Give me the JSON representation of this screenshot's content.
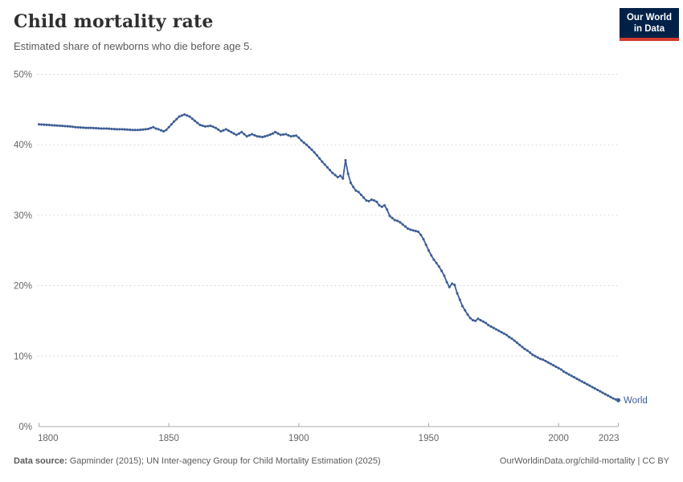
{
  "header": {
    "title": "Child mortality rate",
    "subtitle": "Estimated share of newborns who die before age 5.",
    "logo": {
      "line1": "Our World",
      "line2": "in Data"
    }
  },
  "footer": {
    "source_label": "Data source:",
    "source_text": " Gapminder (2015); UN Inter-agency Group for Child Mortality Estimation (2025)",
    "link_text": "OurWorldinData.org/child-mortality | CC BY"
  },
  "colors": {
    "series_blue": "#3f5f96",
    "logo_navy": "#002147",
    "logo_red": "#d1392f",
    "gridline": "#dadada",
    "axis": "#a8a8a8",
    "tick_label": "#666666"
  },
  "chart_data": {
    "type": "line",
    "title": "Child mortality rate",
    "subtitle": "Estimated share of newborns who die before age 5.",
    "xlabel": "",
    "ylabel": "",
    "xlim": [
      1800,
      2023
    ],
    "ylim": [
      0,
      50
    ],
    "grid": true,
    "legend_position": "end-of-line",
    "end_label": "World",
    "x_ticks": [
      {
        "value": 1800,
        "label": "1800"
      },
      {
        "value": 1850,
        "label": "1850"
      },
      {
        "value": 1900,
        "label": "1900"
      },
      {
        "value": 1950,
        "label": "1950"
      },
      {
        "value": 2000,
        "label": "2000"
      },
      {
        "value": 2023,
        "label": "2023"
      }
    ],
    "y_ticks": [
      {
        "value": 0,
        "label": "0%"
      },
      {
        "value": 10,
        "label": "10%"
      },
      {
        "value": 20,
        "label": "20%"
      },
      {
        "value": 30,
        "label": "30%"
      },
      {
        "value": 40,
        "label": "40%"
      },
      {
        "value": 50,
        "label": "50%"
      }
    ],
    "series": [
      {
        "name": "World",
        "color": "#3f5f96",
        "points": [
          [
            1800,
            42.9
          ],
          [
            1802,
            42.85
          ],
          [
            1804,
            42.8
          ],
          [
            1806,
            42.75
          ],
          [
            1808,
            42.7
          ],
          [
            1810,
            42.65
          ],
          [
            1812,
            42.6
          ],
          [
            1814,
            42.5
          ],
          [
            1816,
            42.45
          ],
          [
            1818,
            42.4
          ],
          [
            1820,
            42.4
          ],
          [
            1822,
            42.35
          ],
          [
            1824,
            42.3
          ],
          [
            1826,
            42.3
          ],
          [
            1828,
            42.25
          ],
          [
            1830,
            42.2
          ],
          [
            1832,
            42.2
          ],
          [
            1834,
            42.15
          ],
          [
            1836,
            42.1
          ],
          [
            1838,
            42.1
          ],
          [
            1840,
            42.15
          ],
          [
            1842,
            42.25
          ],
          [
            1844,
            42.5
          ],
          [
            1845,
            42.3
          ],
          [
            1846,
            42.2
          ],
          [
            1848,
            41.9
          ],
          [
            1849,
            42.1
          ],
          [
            1850,
            42.5
          ],
          [
            1852,
            43.3
          ],
          [
            1854,
            44.0
          ],
          [
            1856,
            44.3
          ],
          [
            1858,
            44.0
          ],
          [
            1860,
            43.4
          ],
          [
            1862,
            42.8
          ],
          [
            1864,
            42.6
          ],
          [
            1866,
            42.7
          ],
          [
            1868,
            42.4
          ],
          [
            1870,
            41.9
          ],
          [
            1872,
            42.2
          ],
          [
            1874,
            41.8
          ],
          [
            1876,
            41.4
          ],
          [
            1878,
            41.8
          ],
          [
            1880,
            41.2
          ],
          [
            1882,
            41.5
          ],
          [
            1884,
            41.2
          ],
          [
            1886,
            41.1
          ],
          [
            1888,
            41.3
          ],
          [
            1890,
            41.6
          ],
          [
            1891,
            41.8
          ],
          [
            1893,
            41.4
          ],
          [
            1895,
            41.5
          ],
          [
            1897,
            41.2
          ],
          [
            1899,
            41.3
          ],
          [
            1900,
            41.0
          ],
          [
            1901,
            40.6
          ],
          [
            1903,
            40.0
          ],
          [
            1905,
            39.3
          ],
          [
            1907,
            38.5
          ],
          [
            1909,
            37.6
          ],
          [
            1911,
            36.8
          ],
          [
            1913,
            36.0
          ],
          [
            1914,
            35.7
          ],
          [
            1915,
            35.4
          ],
          [
            1916,
            35.6
          ],
          [
            1917,
            35.2
          ],
          [
            1918,
            37.8
          ],
          [
            1919,
            35.9
          ],
          [
            1920,
            34.6
          ],
          [
            1921,
            34.0
          ],
          [
            1922,
            33.5
          ],
          [
            1923,
            33.3
          ],
          [
            1924,
            32.9
          ],
          [
            1925,
            32.5
          ],
          [
            1926,
            32.1
          ],
          [
            1927,
            32.0
          ],
          [
            1928,
            32.2
          ],
          [
            1929,
            32.1
          ],
          [
            1930,
            31.9
          ],
          [
            1931,
            31.4
          ],
          [
            1932,
            31.2
          ],
          [
            1933,
            31.4
          ],
          [
            1934,
            30.8
          ],
          [
            1935,
            29.9
          ],
          [
            1936,
            29.6
          ],
          [
            1937,
            29.3
          ],
          [
            1938,
            29.2
          ],
          [
            1939,
            29.0
          ],
          [
            1940,
            28.7
          ],
          [
            1941,
            28.4
          ],
          [
            1942,
            28.1
          ],
          [
            1943,
            27.95
          ],
          [
            1944,
            27.85
          ],
          [
            1945,
            27.75
          ],
          [
            1946,
            27.65
          ],
          [
            1947,
            27.2
          ],
          [
            1948,
            26.6
          ],
          [
            1949,
            25.8
          ],
          [
            1950,
            25.0
          ],
          [
            1951,
            24.3
          ],
          [
            1952,
            23.7
          ],
          [
            1953,
            23.2
          ],
          [
            1954,
            22.7
          ],
          [
            1955,
            22.1
          ],
          [
            1956,
            21.4
          ],
          [
            1957,
            20.5
          ],
          [
            1958,
            19.8
          ],
          [
            1959,
            20.3
          ],
          [
            1960,
            20.1
          ],
          [
            1961,
            18.9
          ],
          [
            1962,
            18.0
          ],
          [
            1963,
            17.1
          ],
          [
            1964,
            16.5
          ],
          [
            1965,
            15.9
          ],
          [
            1966,
            15.4
          ],
          [
            1967,
            15.1
          ],
          [
            1968,
            15.0
          ],
          [
            1969,
            15.3
          ],
          [
            1970,
            15.1
          ],
          [
            1971,
            14.9
          ],
          [
            1972,
            14.7
          ],
          [
            1973,
            14.4
          ],
          [
            1974,
            14.2
          ],
          [
            1975,
            14.0
          ],
          [
            1976,
            13.8
          ],
          [
            1977,
            13.6
          ],
          [
            1978,
            13.4
          ],
          [
            1979,
            13.2
          ],
          [
            1980,
            13.0
          ],
          [
            1981,
            12.7
          ],
          [
            1982,
            12.5
          ],
          [
            1983,
            12.2
          ],
          [
            1984,
            11.9
          ],
          [
            1985,
            11.6
          ],
          [
            1986,
            11.3
          ],
          [
            1987,
            11.0
          ],
          [
            1988,
            10.8
          ],
          [
            1989,
            10.5
          ],
          [
            1990,
            10.2
          ],
          [
            1991,
            10.0
          ],
          [
            1992,
            9.8
          ],
          [
            1993,
            9.6
          ],
          [
            1994,
            9.5
          ],
          [
            1995,
            9.3
          ],
          [
            1996,
            9.1
          ],
          [
            1997,
            8.9
          ],
          [
            1998,
            8.7
          ],
          [
            1999,
            8.5
          ],
          [
            2000,
            8.3
          ],
          [
            2001,
            8.1
          ],
          [
            2002,
            7.8
          ],
          [
            2003,
            7.6
          ],
          [
            2004,
            7.4
          ],
          [
            2005,
            7.2
          ],
          [
            2006,
            7.0
          ],
          [
            2007,
            6.8
          ],
          [
            2008,
            6.6
          ],
          [
            2009,
            6.4
          ],
          [
            2010,
            6.2
          ],
          [
            2011,
            6.0
          ],
          [
            2012,
            5.8
          ],
          [
            2013,
            5.6
          ],
          [
            2014,
            5.4
          ],
          [
            2015,
            5.2
          ],
          [
            2016,
            5.0
          ],
          [
            2017,
            4.8
          ],
          [
            2018,
            4.6
          ],
          [
            2019,
            4.4
          ],
          [
            2020,
            4.2
          ],
          [
            2021,
            4.0
          ],
          [
            2022,
            3.85
          ],
          [
            2023,
            3.75
          ]
        ]
      }
    ]
  }
}
